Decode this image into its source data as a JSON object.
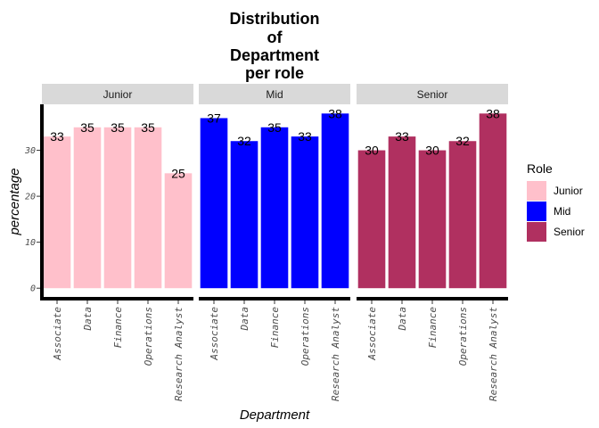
{
  "chart_data": {
    "type": "bar",
    "title_lines": [
      "Distribution",
      "of",
      "Department",
      "per role"
    ],
    "xlabel": "Department",
    "ylabel": "percentage",
    "categories": [
      "Associate",
      "Data",
      "Finance",
      "Operations",
      "Research Analyst"
    ],
    "facets": [
      "Junior",
      "Mid",
      "Senior"
    ],
    "series": [
      {
        "name": "Junior",
        "color": "#ffc0cb",
        "values": [
          33,
          35,
          35,
          35,
          25
        ]
      },
      {
        "name": "Mid",
        "color": "#0000ff",
        "values": [
          37,
          32,
          35,
          33,
          38
        ]
      },
      {
        "name": "Senior",
        "color": "#b03060",
        "values": [
          30,
          33,
          30,
          32,
          38
        ]
      }
    ],
    "yticks": [
      0,
      10,
      20,
      30
    ],
    "ylim": [
      -1.9,
      40
    ],
    "grid": false,
    "legend": {
      "title": "Role",
      "placement": "right",
      "entries": [
        "Junior",
        "Mid",
        "Senior"
      ]
    }
  }
}
